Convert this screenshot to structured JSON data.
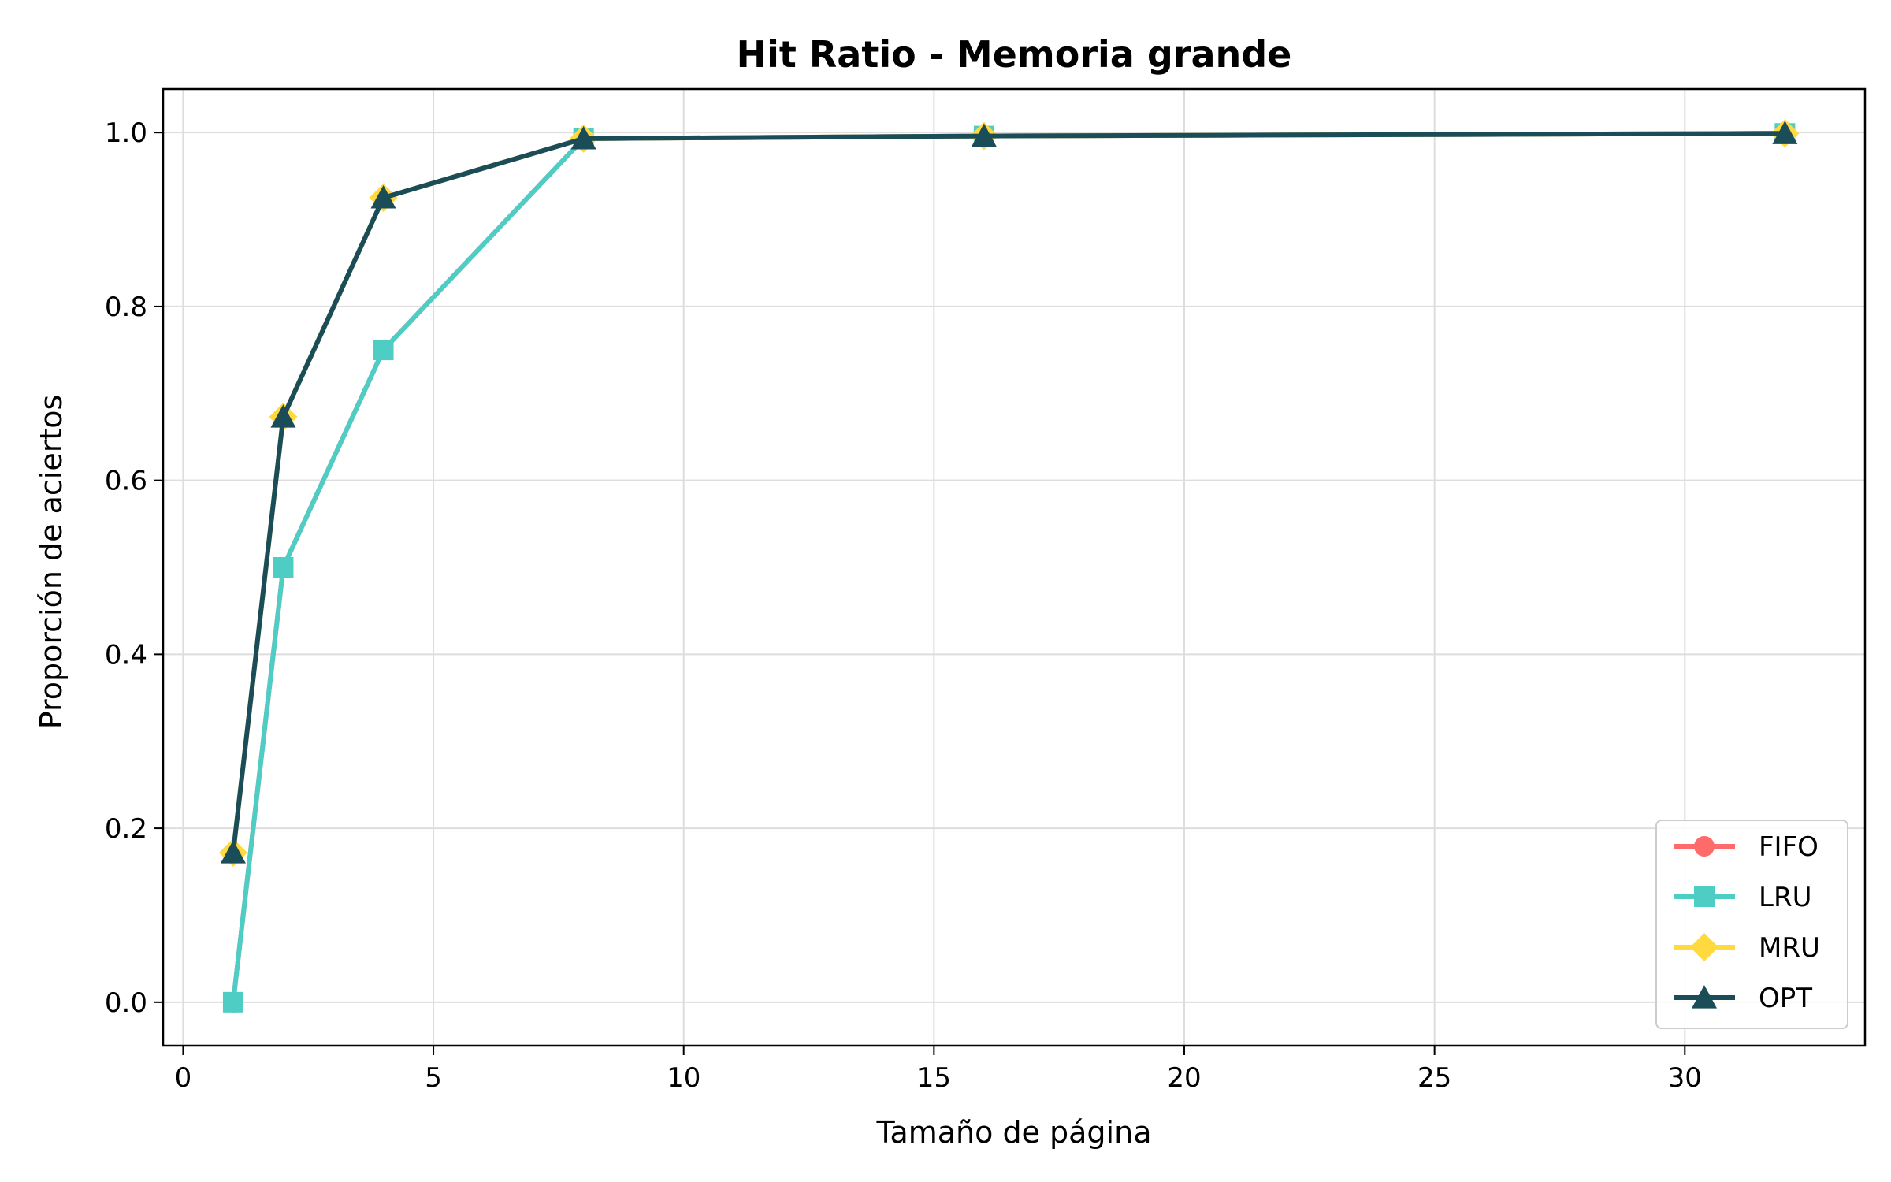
{
  "chart_data": {
    "type": "line",
    "title": "Hit Ratio - Memoria grande",
    "xlabel": "Tamaño de página",
    "ylabel": "Proporción de aciertos",
    "x": [
      1,
      2,
      4,
      8,
      16,
      32
    ],
    "xlim": [
      -0.4,
      33.6
    ],
    "ylim": [
      -0.05,
      1.05
    ],
    "xticks": [
      0,
      5,
      10,
      15,
      20,
      25,
      30
    ],
    "yticks": [
      0.0,
      0.2,
      0.4,
      0.6,
      0.8,
      1.0
    ],
    "xtick_labels": [
      "0",
      "5",
      "10",
      "15",
      "20",
      "25",
      "30"
    ],
    "ytick_labels": [
      "0.0",
      "0.2",
      "0.4",
      "0.6",
      "0.8",
      "1.0"
    ],
    "grid": true,
    "legend_position": "bottom-right",
    "series": [
      {
        "name": "FIFO",
        "marker": "circle",
        "color": "#ff6b6b",
        "values": [
          0.0,
          0.5,
          0.75,
          0.993,
          0.996,
          0.999
        ]
      },
      {
        "name": "LRU",
        "marker": "square",
        "color": "#4ecdc4",
        "values": [
          0.0,
          0.5,
          0.75,
          0.993,
          0.996,
          0.999
        ]
      },
      {
        "name": "MRU",
        "marker": "diamond",
        "color": "#ffd93d",
        "values": [
          0.172,
          0.673,
          0.925,
          0.993,
          0.996,
          0.999
        ]
      },
      {
        "name": "OPT",
        "marker": "triangle",
        "color": "#1a4d57",
        "values": [
          0.172,
          0.673,
          0.925,
          0.993,
          0.996,
          0.999
        ]
      }
    ]
  }
}
